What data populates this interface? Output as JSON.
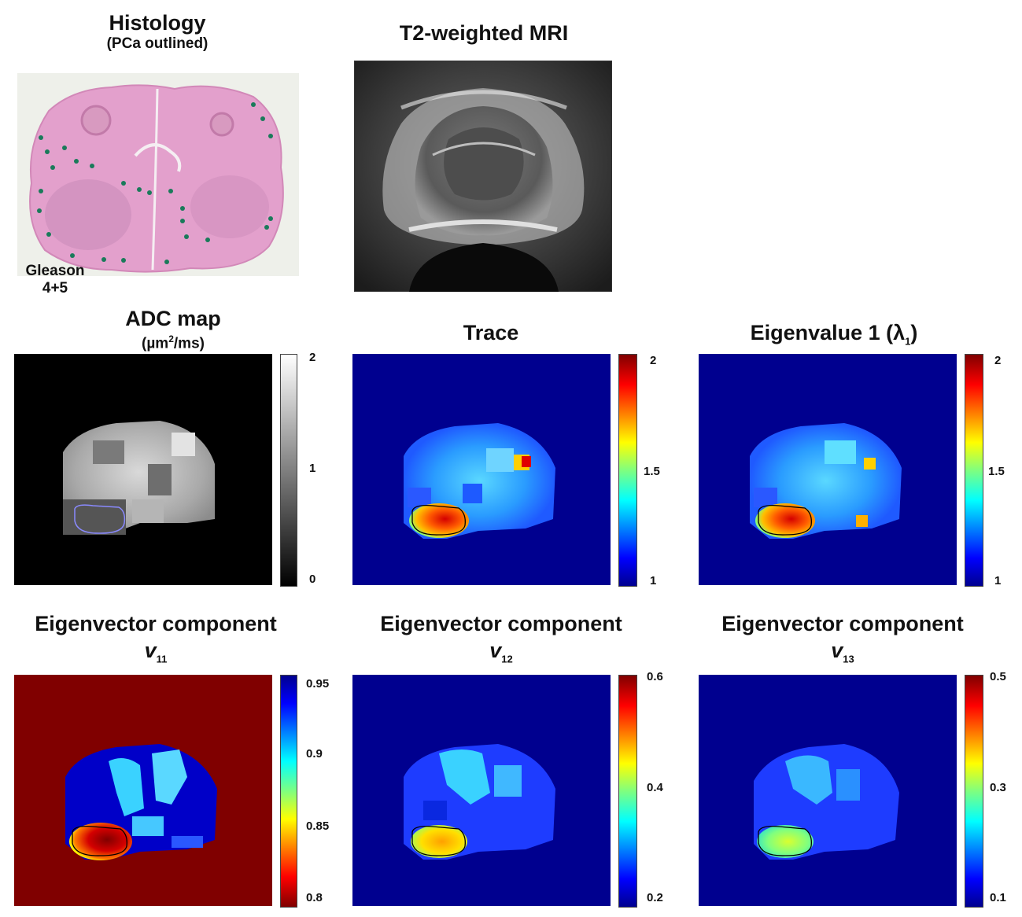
{
  "panels": {
    "histology": {
      "title": "Histology",
      "subtitle": "(PCa outlined)",
      "label_line1": "Gleason",
      "label_line2": "4+5"
    },
    "t2": {
      "title": "T2-weighted MRI"
    },
    "adc": {
      "title": "ADC map",
      "unit_prefix": "(µm",
      "unit_sup": "2",
      "unit_suffix": "/ms)",
      "ticks": [
        "2",
        "1",
        "0"
      ]
    },
    "trace": {
      "title": "Trace",
      "ticks": [
        "2",
        "1.5",
        "1"
      ]
    },
    "eig1": {
      "title_prefix": "Eigenvalue 1 (λ",
      "title_sub": "1",
      "title_suffix": ")",
      "ticks": [
        "2",
        "1.5",
        "1"
      ]
    },
    "v11": {
      "title": "Eigenvector component",
      "symbol": "v",
      "symbol_sub": "11",
      "ticks": [
        "0.95",
        "0.9",
        "0.85",
        "0.8"
      ]
    },
    "v12": {
      "title": "Eigenvector component",
      "symbol": "v",
      "symbol_sub": "12",
      "ticks": [
        "0.6",
        "0.4",
        "0.2"
      ]
    },
    "v13": {
      "title": "Eigenvector component",
      "symbol": "v",
      "symbol_sub": "13",
      "ticks": [
        "0.5",
        "0.3",
        "0.1"
      ]
    }
  },
  "colors": {
    "jet_low": "#00008f",
    "jet_high": "#800000",
    "histology_tissue": "#e3a0cc",
    "histology_dots": "#1a7a5a",
    "adc_outline": "#8a8aff"
  }
}
